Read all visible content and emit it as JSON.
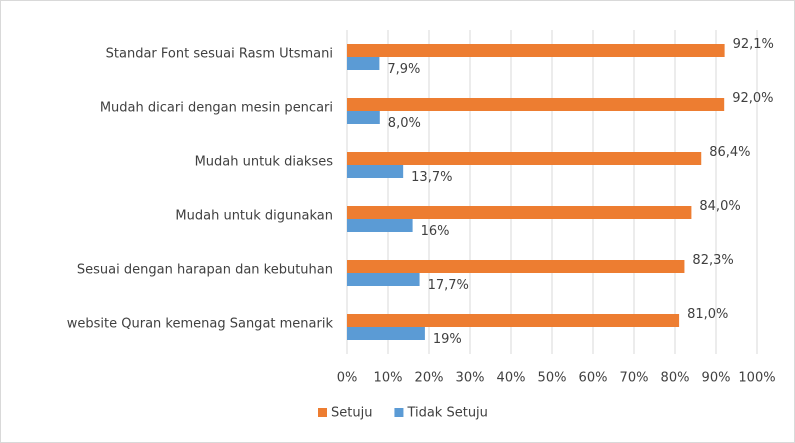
{
  "chart_data": {
    "type": "bar",
    "orientation": "horizontal",
    "categories": [
      "Standar Font sesuai Rasm Utsmani",
      "Mudah dicari dengan mesin pencari",
      "Mudah untuk diakses",
      "Mudah untuk digunakan",
      "Sesuai dengan harapan dan kebutuhan",
      "website Quran kemenag Sangat menarik"
    ],
    "series": [
      {
        "name": "Setuju",
        "color": "#ed7d31",
        "values": [
          92.1,
          92.0,
          86.4,
          84.0,
          82.3,
          81.0
        ],
        "value_labels": [
          "92,1%",
          "92,0%",
          "86,4%",
          "84,0%",
          "82,3%",
          "81,0%"
        ]
      },
      {
        "name": "Tidak Setuju",
        "color": "#5b9bd5",
        "values": [
          7.9,
          8.0,
          13.7,
          16,
          17.7,
          19
        ],
        "value_labels": [
          "7,9%",
          "8,0%",
          "13,7%",
          "16%",
          "17,7%",
          "19%"
        ]
      }
    ],
    "xlim": [
      0,
      100
    ],
    "xticks": [
      {
        "value": 0,
        "label": "0%"
      },
      {
        "value": 10,
        "label": "10%"
      },
      {
        "value": 20,
        "label": "20%"
      },
      {
        "value": 30,
        "label": "30%"
      },
      {
        "value": 40,
        "label": "40%"
      },
      {
        "value": 50,
        "label": "50%"
      },
      {
        "value": 60,
        "label": "60%"
      },
      {
        "value": 70,
        "label": "70%"
      },
      {
        "value": 80,
        "label": "80%"
      },
      {
        "value": 90,
        "label": "90%"
      },
      {
        "value": 100,
        "label": "100%"
      }
    ],
    "grid": true,
    "legend": "bottom"
  }
}
